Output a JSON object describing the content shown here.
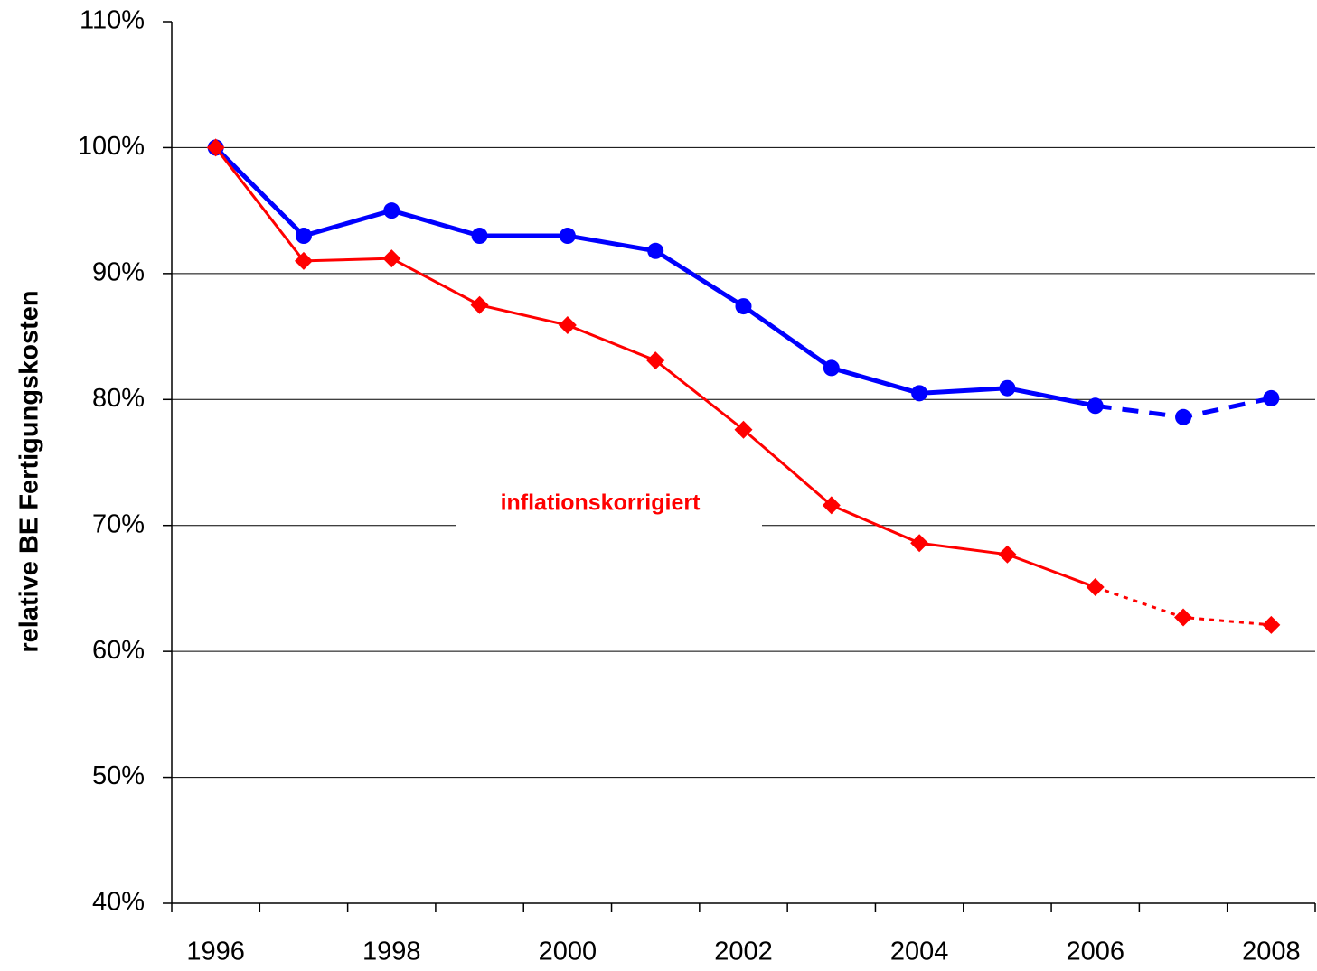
{
  "chart_data": {
    "type": "line",
    "y_label": "relative BE Fertigungskosten",
    "annotation": "inflationskorrigiert",
    "categories": [
      "1996",
      null,
      "1998",
      null,
      "2000",
      null,
      "2002",
      null,
      "2004",
      null,
      "2006",
      null,
      "2008"
    ],
    "series": [
      {
        "color": "#0000ff",
        "marker": "circle",
        "dashed_from": 10,
        "values": [
          100,
          93.0,
          95.0,
          93.0,
          93.0,
          91.8,
          87.4,
          82.5,
          80.5,
          80.9,
          79.5,
          78.6,
          80.1
        ]
      },
      {
        "color": "#ff0000",
        "marker": "diamond",
        "dashed_from": 10,
        "values": [
          100,
          91.0,
          91.2,
          87.5,
          85.9,
          83.1,
          77.6,
          71.6,
          68.6,
          67.7,
          65.1,
          62.7,
          62.1
        ]
      }
    ],
    "ylim": [
      40,
      110
    ],
    "yticks": [
      {
        "value": 40,
        "label": "40%"
      },
      {
        "value": 50,
        "label": "50%"
      },
      {
        "value": 60,
        "label": "60%"
      },
      {
        "value": 70,
        "label": "70%"
      },
      {
        "value": 80,
        "label": "80%"
      },
      {
        "value": 90,
        "label": "90%"
      },
      {
        "value": 100,
        "label": "100%"
      },
      {
        "value": 110,
        "label": "110%"
      }
    ],
    "grid": true
  }
}
